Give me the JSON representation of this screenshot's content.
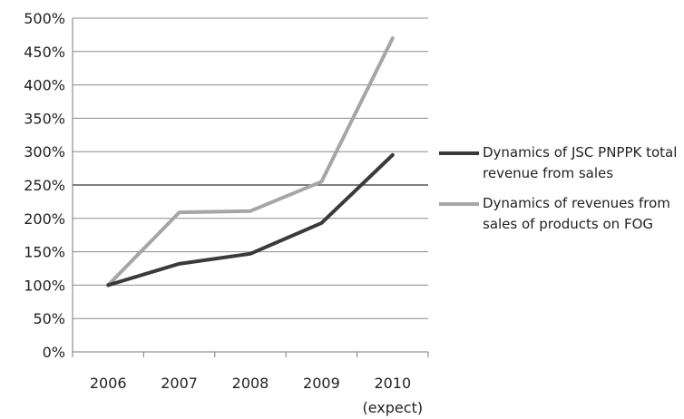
{
  "chart_data": {
    "type": "line",
    "categories": [
      "2006",
      "2007",
      "2008",
      "2009",
      "2010"
    ],
    "category_sublabels": [
      "",
      "",
      "",
      "",
      "(expect)"
    ],
    "yticks": [
      "0%",
      "50%",
      "100%",
      "150%",
      "200%",
      "250%",
      "300%",
      "350%",
      "400%",
      "450%",
      "500%"
    ],
    "ylim": [
      0,
      500
    ],
    "grid": true,
    "legend_position": "right",
    "series": [
      {
        "name": "Dynamics of JSC PNPPK total revenue from sales",
        "color": "#3a3a3a",
        "values": [
          100,
          132,
          147,
          193,
          295
        ]
      },
      {
        "name": "Dynamics of revenues from sales of products on FOG",
        "color": "#a6a6a6",
        "values": [
          100,
          209,
          211,
          255,
          470
        ]
      }
    ]
  }
}
